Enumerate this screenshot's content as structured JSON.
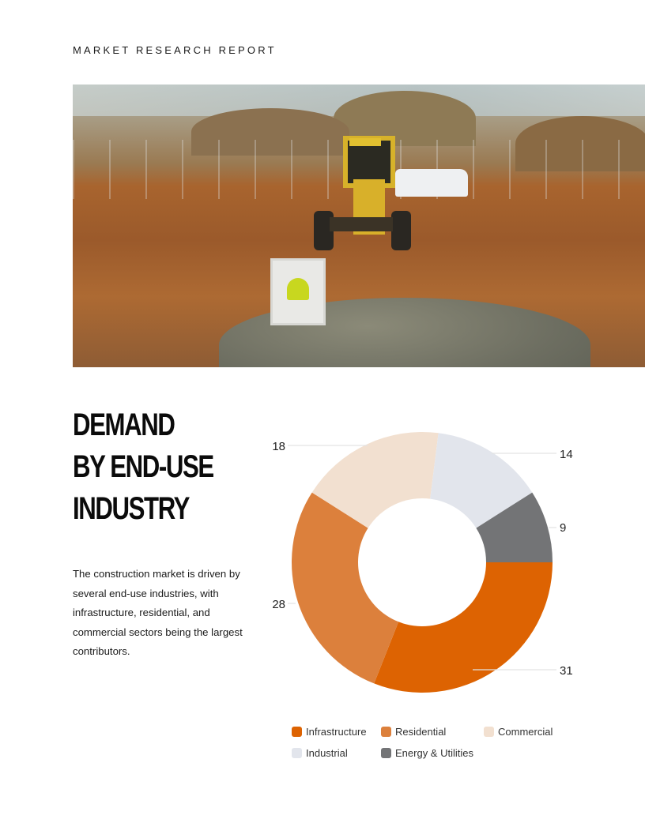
{
  "header": {
    "kicker": "MARKET RESEARCH REPORT"
  },
  "photo": {
    "description": "construction site with motor grader and skid steer loader on dirt field"
  },
  "section": {
    "title_lines": [
      "DEMAND",
      "BY END-USE",
      "INDUSTRY"
    ],
    "description": "The construction market is driven by several end-use industries, with infrastructure, residential, and commercial sectors being the largest contributors."
  },
  "chart_data": {
    "type": "pie",
    "subtype": "donut",
    "title": "Demand by End-Use Industry",
    "categories": [
      "Infrastructure",
      "Residential",
      "Commercial",
      "Industrial",
      "Energy & Utilities"
    ],
    "values": [
      31,
      28,
      18,
      14,
      9
    ],
    "colors": [
      "#dd6302",
      "#dc803c",
      "#f2e0d0",
      "#e2e5ec",
      "#737476"
    ],
    "data_labels": [
      "31",
      "28",
      "18",
      "14",
      "9"
    ],
    "start_angle": "3 o'clock, clockwise",
    "legend_position": "bottom"
  },
  "legend": {
    "items": [
      {
        "label": "Infrastructure",
        "color": "#dd6302"
      },
      {
        "label": "Residential",
        "color": "#dc803c"
      },
      {
        "label": "Commercial",
        "color": "#f2e0d0"
      },
      {
        "label": "Industrial",
        "color": "#e2e5ec"
      },
      {
        "label": "Energy & Utilities",
        "color": "#737476"
      }
    ]
  }
}
